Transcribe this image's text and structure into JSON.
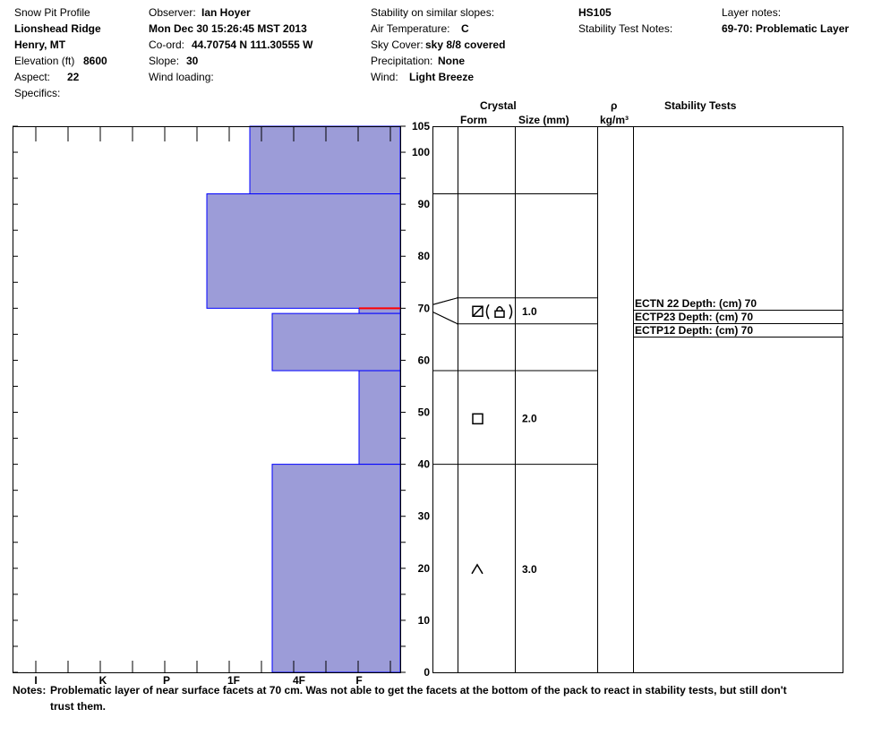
{
  "header": {
    "col1": {
      "title": "Snow Pit Profile",
      "location": "Lionshead Ridge",
      "region": "Henry, MT",
      "elevation_label": "Elevation (ft)",
      "elevation_value": "8600",
      "aspect_label": "Aspect:",
      "aspect_value": "22",
      "specifics_label": "Specifics:"
    },
    "col2": {
      "observer_label": "Observer:",
      "observer_value": "Ian Hoyer",
      "datetime": "Mon Dec 30 15:26:45 MST 2013",
      "coord_label": "Co-ord:",
      "coord_value": "44.70754 N 111.30555 W",
      "slope_label": "Slope:",
      "slope_value": "30",
      "wind_loading_label": "Wind loading:"
    },
    "col3": {
      "stability_label": "Stability on similar slopes:",
      "air_temp_label": "Air Temperature:",
      "air_temp_value": "C",
      "sky_label": "Sky Cover:",
      "sky_value": "sky 8/8 covered",
      "precip_label": "Precipitation:",
      "precip_value": "None",
      "wind_label": "Wind:",
      "wind_value": "Light Breeze"
    },
    "col4": {
      "hs": "HS105",
      "stability_notes_label": "Stability Test Notes:"
    },
    "col5": {
      "layer_notes_label": "Layer notes:",
      "layer_notes_value": "69-70: Problematic Layer"
    }
  },
  "table_headers": {
    "crystal": "Crystal",
    "form": "Form",
    "size": "Size (mm)",
    "rho": "ρ",
    "density_unit": "kg/m³",
    "stability_tests": "Stability Tests"
  },
  "notes": {
    "label": "Notes:",
    "line1": "Problematic layer of near surface facets at 70 cm. Was not able to get the facets at the bottom of the pack to react in stability tests, but still don't",
    "line2": "trust them."
  },
  "chart_data": {
    "type": "bar",
    "orientation": "horizontal",
    "description_axis_y": "Height above ground (cm)",
    "y_ticks": [
      0,
      10,
      20,
      30,
      40,
      50,
      60,
      70,
      80,
      90,
      100,
      105
    ],
    "ylim": [
      0,
      105
    ],
    "hardness_ticks": [
      "I",
      "K",
      "P",
      "1F",
      "4F",
      "F"
    ],
    "hardness_scale_note": "hand hardness, increasing to the left",
    "layers": [
      {
        "bottom": 92,
        "top": 105,
        "hardness": "1F-"
      },
      {
        "bottom": 70,
        "top": 92,
        "hardness": "1F+"
      },
      {
        "bottom": 69,
        "top": 70,
        "hardness": "F"
      },
      {
        "bottom": 58,
        "top": 69,
        "hardness": "4F+"
      },
      {
        "bottom": 40,
        "top": 58,
        "hardness": "F"
      },
      {
        "bottom": 0,
        "top": 40,
        "hardness": "4F+"
      }
    ],
    "problematic_layer": {
      "bottom": 69,
      "top": 70,
      "color": "#ff0000"
    },
    "crystal_layers": [
      {
        "bottom": 67,
        "top": 72,
        "form_icons": [
          "faceted-rounded",
          "depth-hoar"
        ],
        "size": "1.0"
      },
      {
        "bottom": 40,
        "top": 58,
        "form_icons": [
          "faceted"
        ],
        "size": "2.0"
      },
      {
        "bottom": 0,
        "top": 40,
        "form_icons": [
          "depth-hoar-caret"
        ],
        "size": "3.0"
      }
    ],
    "layer_boundaries": [
      92,
      72,
      67,
      58,
      40
    ],
    "stability_tests": [
      {
        "text": "ECTN 22   Depth: (cm) 70"
      },
      {
        "text": "ECTP23   Depth: (cm) 70"
      },
      {
        "text": "ECTP12   Depth: (cm) 70"
      }
    ],
    "colors": {
      "fill": "#9c9cd8",
      "edge": "#0000ff",
      "problem": "#ff0000"
    }
  }
}
